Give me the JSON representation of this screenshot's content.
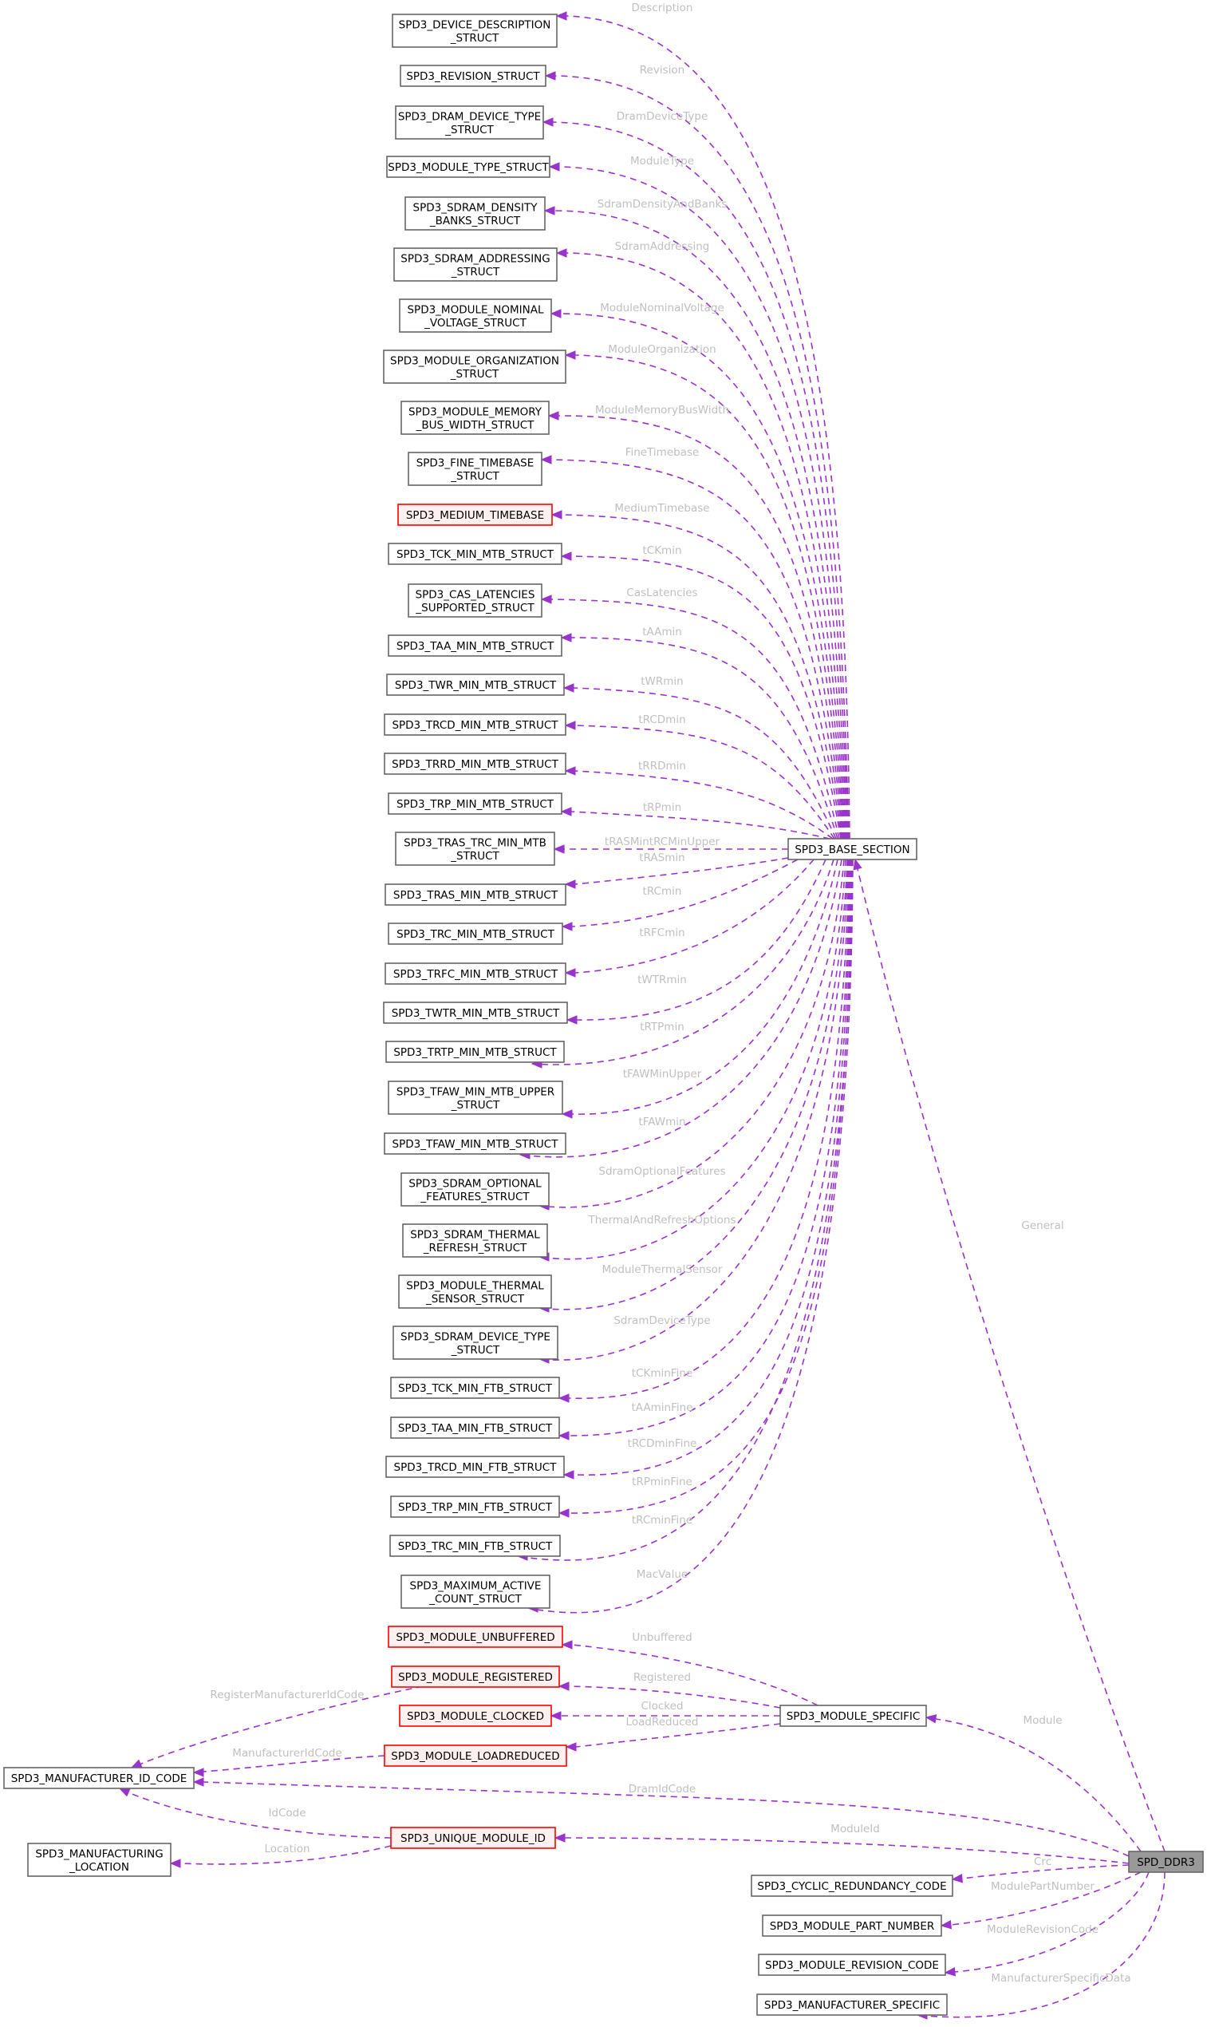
{
  "diagram": {
    "title": "SPD_DDR3 collaboration diagram",
    "colors": {
      "edge": "#9a32cd",
      "edge_label": "#c0c0c0",
      "node_border": "#666666",
      "undocumented_border": "#ff0000",
      "undocumented_fill": "#fff0f0",
      "root_fill": "#999999"
    },
    "nodes": [
      {
        "id": "dev_desc",
        "lines": [
          "SPD3_DEVICE_DESCRIPTION",
          "_STRUCT"
        ],
        "style": "normal"
      },
      {
        "id": "revision",
        "lines": [
          "SPD3_REVISION_STRUCT"
        ],
        "style": "normal"
      },
      {
        "id": "dram_dev_type",
        "lines": [
          "SPD3_DRAM_DEVICE_TYPE",
          "_STRUCT"
        ],
        "style": "normal"
      },
      {
        "id": "module_type",
        "lines": [
          "SPD3_MODULE_TYPE_STRUCT"
        ],
        "style": "normal"
      },
      {
        "id": "density",
        "lines": [
          "SPD3_SDRAM_DENSITY",
          "_BANKS_STRUCT"
        ],
        "style": "normal"
      },
      {
        "id": "addressing",
        "lines": [
          "SPD3_SDRAM_ADDRESSING",
          "_STRUCT"
        ],
        "style": "normal"
      },
      {
        "id": "nom_voltage",
        "lines": [
          "SPD3_MODULE_NOMINAL",
          "_VOLTAGE_STRUCT"
        ],
        "style": "normal"
      },
      {
        "id": "organization",
        "lines": [
          "SPD3_MODULE_ORGANIZATION",
          "_STRUCT"
        ],
        "style": "normal"
      },
      {
        "id": "bus_width",
        "lines": [
          "SPD3_MODULE_MEMORY",
          "_BUS_WIDTH_STRUCT"
        ],
        "style": "normal"
      },
      {
        "id": "fine_tb",
        "lines": [
          "SPD3_FINE_TIMEBASE",
          "_STRUCT"
        ],
        "style": "normal"
      },
      {
        "id": "medium_tb",
        "lines": [
          "SPD3_MEDIUM_TIMEBASE"
        ],
        "style": "red"
      },
      {
        "id": "tck_mtb",
        "lines": [
          "SPD3_TCK_MIN_MTB_STRUCT"
        ],
        "style": "normal"
      },
      {
        "id": "cas",
        "lines": [
          "SPD3_CAS_LATENCIES",
          "_SUPPORTED_STRUCT"
        ],
        "style": "normal"
      },
      {
        "id": "taa_mtb",
        "lines": [
          "SPD3_TAA_MIN_MTB_STRUCT"
        ],
        "style": "normal"
      },
      {
        "id": "twr_mtb",
        "lines": [
          "SPD3_TWR_MIN_MTB_STRUCT"
        ],
        "style": "normal"
      },
      {
        "id": "trcd_mtb",
        "lines": [
          "SPD3_TRCD_MIN_MTB_STRUCT"
        ],
        "style": "normal"
      },
      {
        "id": "trrd_mtb",
        "lines": [
          "SPD3_TRRD_MIN_MTB_STRUCT"
        ],
        "style": "normal"
      },
      {
        "id": "trp_mtb",
        "lines": [
          "SPD3_TRP_MIN_MTB_STRUCT"
        ],
        "style": "normal"
      },
      {
        "id": "tras_trc",
        "lines": [
          "SPD3_TRAS_TRC_MIN_MTB",
          "_STRUCT"
        ],
        "style": "normal"
      },
      {
        "id": "tras_mtb",
        "lines": [
          "SPD3_TRAS_MIN_MTB_STRUCT"
        ],
        "style": "normal"
      },
      {
        "id": "trc_mtb",
        "lines": [
          "SPD3_TRC_MIN_MTB_STRUCT"
        ],
        "style": "normal"
      },
      {
        "id": "trfc_mtb",
        "lines": [
          "SPD3_TRFC_MIN_MTB_STRUCT"
        ],
        "style": "normal"
      },
      {
        "id": "twtr_mtb",
        "lines": [
          "SPD3_TWTR_MIN_MTB_STRUCT"
        ],
        "style": "normal"
      },
      {
        "id": "trtp_mtb",
        "lines": [
          "SPD3_TRTP_MIN_MTB_STRUCT"
        ],
        "style": "normal"
      },
      {
        "id": "tfaw_upper",
        "lines": [
          "SPD3_TFAW_MIN_MTB_UPPER",
          "_STRUCT"
        ],
        "style": "normal"
      },
      {
        "id": "tfaw_mtb",
        "lines": [
          "SPD3_TFAW_MIN_MTB_STRUCT"
        ],
        "style": "normal"
      },
      {
        "id": "opt_features",
        "lines": [
          "SPD3_SDRAM_OPTIONAL",
          "_FEATURES_STRUCT"
        ],
        "style": "normal"
      },
      {
        "id": "thermal_refresh",
        "lines": [
          "SPD3_SDRAM_THERMAL",
          "_REFRESH_STRUCT"
        ],
        "style": "normal"
      },
      {
        "id": "thermal_sensor",
        "lines": [
          "SPD3_MODULE_THERMAL",
          "_SENSOR_STRUCT"
        ],
        "style": "normal"
      },
      {
        "id": "sdram_dev_type",
        "lines": [
          "SPD3_SDRAM_DEVICE_TYPE",
          "_STRUCT"
        ],
        "style": "normal"
      },
      {
        "id": "tck_ftb",
        "lines": [
          "SPD3_TCK_MIN_FTB_STRUCT"
        ],
        "style": "normal"
      },
      {
        "id": "taa_ftb",
        "lines": [
          "SPD3_TAA_MIN_FTB_STRUCT"
        ],
        "style": "normal"
      },
      {
        "id": "trcd_ftb",
        "lines": [
          "SPD3_TRCD_MIN_FTB_STRUCT"
        ],
        "style": "normal"
      },
      {
        "id": "trp_ftb",
        "lines": [
          "SPD3_TRP_MIN_FTB_STRUCT"
        ],
        "style": "normal"
      },
      {
        "id": "trc_ftb",
        "lines": [
          "SPD3_TRC_MIN_FTB_STRUCT"
        ],
        "style": "normal"
      },
      {
        "id": "mac",
        "lines": [
          "SPD3_MAXIMUM_ACTIVE",
          "_COUNT_STRUCT"
        ],
        "style": "normal"
      },
      {
        "id": "unbuffered",
        "lines": [
          "SPD3_MODULE_UNBUFFERED"
        ],
        "style": "red"
      },
      {
        "id": "registered",
        "lines": [
          "SPD3_MODULE_REGISTERED"
        ],
        "style": "red"
      },
      {
        "id": "clocked",
        "lines": [
          "SPD3_MODULE_CLOCKED"
        ],
        "style": "red"
      },
      {
        "id": "loadreduced",
        "lines": [
          "SPD3_MODULE_LOADREDUCED"
        ],
        "style": "red"
      },
      {
        "id": "mfr_id",
        "lines": [
          "SPD3_MANUFACTURER_ID_CODE"
        ],
        "style": "normal"
      },
      {
        "id": "unique_id",
        "lines": [
          "SPD3_UNIQUE_MODULE_ID"
        ],
        "style": "red"
      },
      {
        "id": "mfg_location",
        "lines": [
          "SPD3_MANUFACTURING",
          "_LOCATION"
        ],
        "style": "normal"
      },
      {
        "id": "base",
        "lines": [
          "SPD3_BASE_SECTION"
        ],
        "style": "normal"
      },
      {
        "id": "module_specific",
        "lines": [
          "SPD3_MODULE_SPECIFIC"
        ],
        "style": "normal"
      },
      {
        "id": "crc",
        "lines": [
          "SPD3_CYCLIC_REDUNDANCY_CODE"
        ],
        "style": "normal"
      },
      {
        "id": "part_number",
        "lines": [
          "SPD3_MODULE_PART_NUMBER"
        ],
        "style": "normal"
      },
      {
        "id": "revision_code",
        "lines": [
          "SPD3_MODULE_REVISION_CODE"
        ],
        "style": "normal"
      },
      {
        "id": "mfr_specific",
        "lines": [
          "SPD3_MANUFACTURER_SPECIFIC"
        ],
        "style": "normal"
      },
      {
        "id": "root",
        "lines": [
          "SPD_DDR3"
        ],
        "style": "root"
      }
    ],
    "edges": [
      {
        "from": "base",
        "to": "dev_desc",
        "label": "Description"
      },
      {
        "from": "base",
        "to": "revision",
        "label": "Revision"
      },
      {
        "from": "base",
        "to": "dram_dev_type",
        "label": "DramDeviceType"
      },
      {
        "from": "base",
        "to": "module_type",
        "label": "ModuleType"
      },
      {
        "from": "base",
        "to": "density",
        "label": "SdramDensityAndBanks"
      },
      {
        "from": "base",
        "to": "addressing",
        "label": "SdramAddressing"
      },
      {
        "from": "base",
        "to": "nom_voltage",
        "label": "ModuleNominalVoltage"
      },
      {
        "from": "base",
        "to": "organization",
        "label": "ModuleOrganization"
      },
      {
        "from": "base",
        "to": "bus_width",
        "label": "ModuleMemoryBusWidth"
      },
      {
        "from": "base",
        "to": "fine_tb",
        "label": "FineTimebase"
      },
      {
        "from": "base",
        "to": "medium_tb",
        "label": "MediumTimebase"
      },
      {
        "from": "base",
        "to": "tck_mtb",
        "label": "tCKmin"
      },
      {
        "from": "base",
        "to": "cas",
        "label": "CasLatencies"
      },
      {
        "from": "base",
        "to": "taa_mtb",
        "label": "tAAmin"
      },
      {
        "from": "base",
        "to": "twr_mtb",
        "label": "tWRmin"
      },
      {
        "from": "base",
        "to": "trcd_mtb",
        "label": "tRCDmin"
      },
      {
        "from": "base",
        "to": "trrd_mtb",
        "label": "tRRDmin"
      },
      {
        "from": "base",
        "to": "trp_mtb",
        "label": "tRPmin"
      },
      {
        "from": "base",
        "to": "tras_trc",
        "label": "tRASMintRCMinUpper"
      },
      {
        "from": "base",
        "to": "tras_mtb",
        "label": "tRASmin"
      },
      {
        "from": "base",
        "to": "trc_mtb",
        "label": "tRCmin"
      },
      {
        "from": "base",
        "to": "trfc_mtb",
        "label": "tRFCmin"
      },
      {
        "from": "base",
        "to": "twtr_mtb",
        "label": "tWTRmin"
      },
      {
        "from": "base",
        "to": "trtp_mtb",
        "label": "tRTPmin"
      },
      {
        "from": "base",
        "to": "tfaw_upper",
        "label": "tFAWMinUpper"
      },
      {
        "from": "base",
        "to": "tfaw_mtb",
        "label": "tFAWmin"
      },
      {
        "from": "base",
        "to": "opt_features",
        "label": "SdramOptionalFeatures"
      },
      {
        "from": "base",
        "to": "thermal_refresh",
        "label": "ThermalAndRefreshOptions"
      },
      {
        "from": "base",
        "to": "thermal_sensor",
        "label": "ModuleThermalSensor"
      },
      {
        "from": "base",
        "to": "sdram_dev_type",
        "label": "SdramDeviceType"
      },
      {
        "from": "base",
        "to": "tck_ftb",
        "label": "tCKminFine"
      },
      {
        "from": "base",
        "to": "taa_ftb",
        "label": "tAAminFine"
      },
      {
        "from": "base",
        "to": "trcd_ftb",
        "label": "tRCDminFine"
      },
      {
        "from": "base",
        "to": "trp_ftb",
        "label": "tRPminFine"
      },
      {
        "from": "base",
        "to": "trc_ftb",
        "label": "tRCminFine"
      },
      {
        "from": "base",
        "to": "mac",
        "label": "MacValue"
      },
      {
        "from": "module_specific",
        "to": "unbuffered",
        "label": "Unbuffered"
      },
      {
        "from": "module_specific",
        "to": "registered",
        "label": "Registered"
      },
      {
        "from": "module_specific",
        "to": "clocked",
        "label": "Clocked"
      },
      {
        "from": "module_specific",
        "to": "loadreduced",
        "label": "LoadReduced"
      },
      {
        "from": "registered",
        "to": "mfr_id",
        "label": "RegisterManufacturerIdCode"
      },
      {
        "from": "loadreduced",
        "to": "mfr_id",
        "label": "ManufacturerIdCode"
      },
      {
        "from": "root",
        "to": "mfr_id",
        "label": "DramIdCode"
      },
      {
        "from": "unique_id",
        "to": "mfr_id",
        "label": "IdCode"
      },
      {
        "from": "unique_id",
        "to": "mfg_location",
        "label": "Location"
      },
      {
        "from": "root",
        "to": "base",
        "label": "General"
      },
      {
        "from": "root",
        "to": "module_specific",
        "label": "Module"
      },
      {
        "from": "root",
        "to": "unique_id",
        "label": "ModuleId"
      },
      {
        "from": "root",
        "to": "crc",
        "label": "Crc"
      },
      {
        "from": "root",
        "to": "part_number",
        "label": "ModulePartNumber"
      },
      {
        "from": "root",
        "to": "revision_code",
        "label": "ModuleRevisionCode"
      },
      {
        "from": "root",
        "to": "mfr_specific",
        "label": "ManufacturerSpecificData"
      }
    ]
  }
}
